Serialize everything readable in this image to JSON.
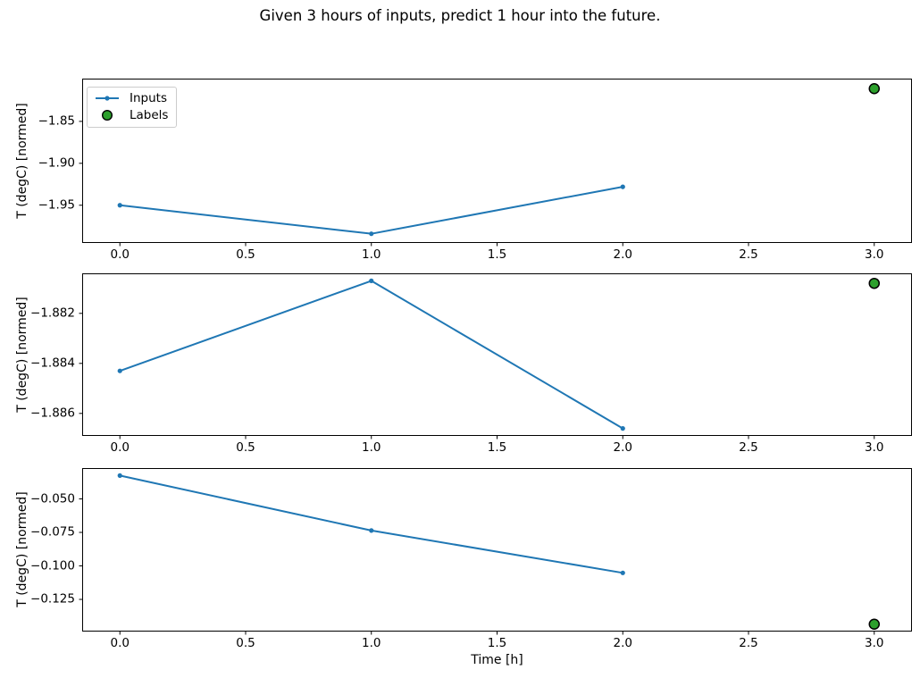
{
  "figure": {
    "title": "Given 3 hours of inputs, predict 1 hour into the future.",
    "xlabel": "Time [h]"
  },
  "legend": {
    "inputs_label": "Inputs",
    "labels_label": "Labels"
  },
  "colors": {
    "inputs_line": "#1f77b4",
    "labels_fill": "#2ca02c",
    "labels_edge": "#000000",
    "axes_edge": "#000000",
    "background": "#ffffff",
    "legend_border": "#cccccc"
  },
  "chart_data": [
    {
      "type": "line",
      "ylabel": "T (degC) [normed]",
      "xlim": [
        -0.15,
        3.15
      ],
      "ylim": [
        -1.995,
        -1.799
      ],
      "xticks": {
        "values": [
          0.0,
          0.5,
          1.0,
          1.5,
          2.0,
          2.5,
          3.0
        ],
        "labels": [
          "0.0",
          "0.5",
          "1.0",
          "1.5",
          "2.0",
          "2.5",
          "3.0"
        ]
      },
      "yticks": {
        "values": [
          -1.85,
          -1.9,
          -1.95
        ],
        "labels": [
          "−1.85",
          "−1.90",
          "−1.95"
        ]
      },
      "series": [
        {
          "name": "Inputs",
          "kind": "line",
          "x": [
            0,
            1,
            2
          ],
          "y": [
            -1.95,
            -1.984,
            -1.928
          ]
        },
        {
          "name": "Labels",
          "kind": "scatter",
          "x": [
            3
          ],
          "y": [
            -1.811
          ]
        }
      ],
      "legend_position": "upper left",
      "grid": false
    },
    {
      "type": "line",
      "ylabel": "T (degC) [normed]",
      "xlim": [
        -0.15,
        3.15
      ],
      "ylim": [
        -1.8869,
        -1.8804
      ],
      "xticks": {
        "values": [
          0.0,
          0.5,
          1.0,
          1.5,
          2.0,
          2.5,
          3.0
        ],
        "labels": [
          "0.0",
          "0.5",
          "1.0",
          "1.5",
          "2.0",
          "2.5",
          "3.0"
        ]
      },
      "yticks": {
        "values": [
          -1.882,
          -1.884,
          -1.886
        ],
        "labels": [
          "−1.882",
          "−1.884",
          "−1.886"
        ]
      },
      "series": [
        {
          "name": "Inputs",
          "kind": "line",
          "x": [
            0,
            1,
            2
          ],
          "y": [
            -1.8843,
            -1.8807,
            -1.8866
          ]
        },
        {
          "name": "Labels",
          "kind": "scatter",
          "x": [
            3
          ],
          "y": [
            -1.8808
          ]
        }
      ],
      "legend_position": null,
      "grid": false
    },
    {
      "type": "line",
      "ylabel": "T (degC) [normed]",
      "xlim": [
        -0.15,
        3.15
      ],
      "ylim": [
        -0.149,
        -0.027
      ],
      "xticks": {
        "values": [
          0.0,
          0.5,
          1.0,
          1.5,
          2.0,
          2.5,
          3.0
        ],
        "labels": [
          "0.0",
          "0.5",
          "1.0",
          "1.5",
          "2.0",
          "2.5",
          "3.0"
        ]
      },
      "yticks": {
        "values": [
          -0.05,
          -0.075,
          -0.1,
          -0.125
        ],
        "labels": [
          "−0.050",
          "−0.075",
          "−0.100",
          "−0.125"
        ]
      },
      "series": [
        {
          "name": "Inputs",
          "kind": "line",
          "x": [
            0,
            1,
            2
          ],
          "y": [
            -0.0326,
            -0.0736,
            -0.1052
          ]
        },
        {
          "name": "Labels",
          "kind": "scatter",
          "x": [
            3
          ],
          "y": [
            -0.1435
          ]
        }
      ],
      "legend_position": null,
      "grid": false
    }
  ]
}
